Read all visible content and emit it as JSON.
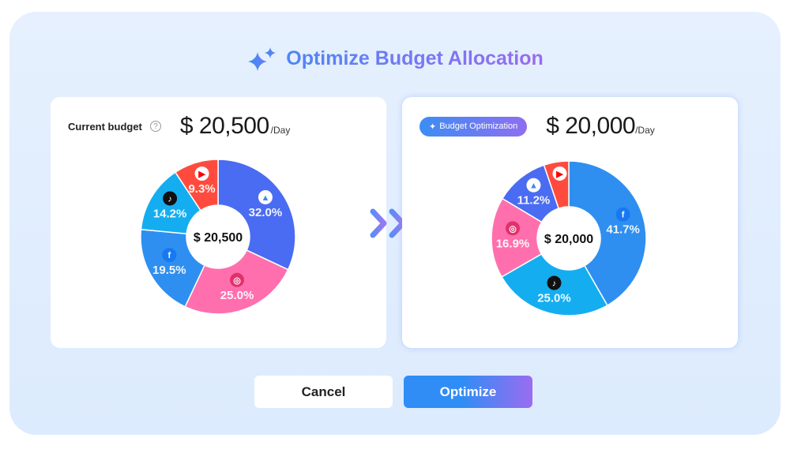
{
  "title": "Optimize Budget Allocation",
  "current": {
    "label": "Current budget",
    "amount": "$ 20,500",
    "per": "/Day",
    "center": "$ 20,500"
  },
  "optimized": {
    "badge": "Budget Optimization",
    "amount": "$ 20,000",
    "per": "/Day",
    "center": "$ 20,000"
  },
  "buttons": {
    "cancel": "Cancel",
    "optimize": "Optimize"
  },
  "colors": {
    "google": "#4a6cf2",
    "instagram": "#ff6fae",
    "facebook": "#2e8ff0",
    "tiktok": "#14aef0",
    "youtube": "#ff4b3e"
  },
  "chart_data": [
    {
      "type": "pie",
      "title": "Current budget",
      "slices": [
        {
          "platform": "google-ads",
          "value": 32.0,
          "label": "32.0%"
        },
        {
          "platform": "instagram",
          "value": 25.0,
          "label": "25.0%"
        },
        {
          "platform": "facebook",
          "value": 19.5,
          "label": "19.5%"
        },
        {
          "platform": "tiktok",
          "value": 14.2,
          "label": "14.2%"
        },
        {
          "platform": "youtube",
          "value": 9.3,
          "label": "9.3%"
        }
      ]
    },
    {
      "type": "pie",
      "title": "Budget Optimization",
      "slices": [
        {
          "platform": "facebook",
          "value": 41.7,
          "label": "41.7%"
        },
        {
          "platform": "tiktok",
          "value": 25.0,
          "label": "25.0%"
        },
        {
          "platform": "instagram",
          "value": 16.9,
          "label": "16.9%"
        },
        {
          "platform": "google-ads",
          "value": 11.2,
          "label": "11.2%"
        },
        {
          "platform": "youtube",
          "value": 5.2,
          "label": ""
        }
      ]
    }
  ]
}
